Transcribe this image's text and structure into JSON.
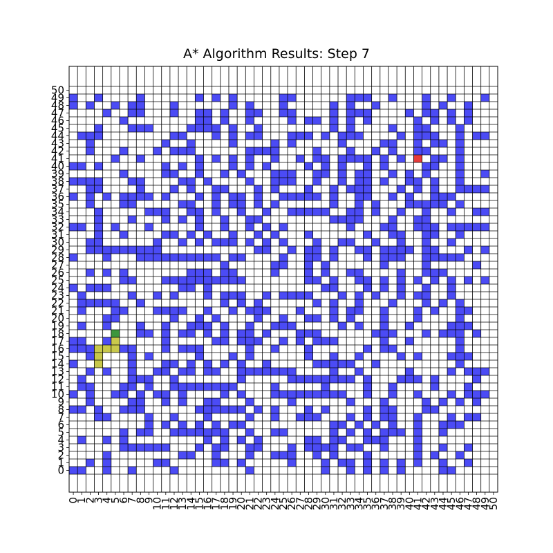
{
  "chart_data": {
    "type": "heatmap",
    "title": "A* Algorithm Results: Step 7",
    "xlabel": "",
    "ylabel": "",
    "xlim": [
      0,
      50
    ],
    "ylim": [
      0,
      50
    ],
    "x_ticks": [
      0,
      1,
      2,
      3,
      4,
      5,
      6,
      7,
      8,
      9,
      10,
      11,
      12,
      13,
      14,
      15,
      16,
      17,
      18,
      19,
      20,
      21,
      22,
      23,
      24,
      25,
      26,
      27,
      28,
      29,
      30,
      31,
      32,
      33,
      34,
      35,
      36,
      37,
      38,
      39,
      40,
      41,
      42,
      43,
      44,
      45,
      46,
      47,
      48,
      49,
      50
    ],
    "y_ticks": [
      0,
      1,
      2,
      3,
      4,
      5,
      6,
      7,
      8,
      9,
      10,
      11,
      12,
      13,
      14,
      15,
      16,
      17,
      18,
      19,
      20,
      21,
      22,
      23,
      24,
      25,
      26,
      27,
      28,
      29,
      30,
      31,
      32,
      33,
      34,
      35,
      36,
      37,
      38,
      39,
      40,
      41,
      42,
      43,
      44,
      45,
      46,
      47,
      48,
      49,
      50
    ],
    "grid": true,
    "colors": {
      "obstacle": "#4b4bf5",
      "explored": "#c8c84b",
      "start": "#3c963c",
      "goal": "#e63c3c",
      "empty": "#ffffff",
      "gridline": "#000000"
    },
    "start": [
      5,
      18
    ],
    "goal": [
      41,
      41
    ],
    "explored": [
      [
        3,
        14
      ],
      [
        3,
        15
      ],
      [
        3,
        16
      ],
      [
        4,
        16
      ],
      [
        5,
        16
      ],
      [
        5,
        17
      ]
    ],
    "obstacles": {
      "49": [
        0,
        3,
        8,
        15,
        17,
        19,
        25,
        26,
        33,
        34,
        35,
        38,
        42,
        45,
        49
      ],
      "48": [
        0,
        2,
        5,
        7,
        8,
        12,
        19,
        21,
        25,
        31,
        33,
        36,
        42,
        44,
        47
      ],
      "47": [
        4,
        7,
        8,
        12,
        15,
        16,
        18,
        21,
        22,
        25,
        26,
        31,
        33,
        34,
        35,
        40,
        42,
        43,
        45,
        47
      ],
      "46": [
        6,
        15,
        16,
        18,
        21,
        26,
        28,
        29,
        31,
        33,
        35,
        41,
        43,
        45,
        47
      ],
      "45": [
        3,
        7,
        8,
        9,
        14,
        15,
        16,
        17,
        19,
        22,
        31,
        33,
        38,
        41,
        42,
        46
      ],
      "44": [
        1,
        2,
        3,
        12,
        13,
        17,
        19,
        21,
        22,
        26,
        27,
        28,
        30,
        32,
        33,
        34,
        39,
        41,
        42,
        43,
        46,
        48,
        49
      ],
      "43": [
        2,
        11,
        14,
        19,
        24,
        26,
        32,
        37,
        38,
        41,
        43,
        44,
        46
      ],
      "42": [
        2,
        6,
        10,
        12,
        13,
        14,
        21,
        22,
        23,
        24,
        29,
        33,
        36,
        38,
        41,
        42,
        46
      ],
      "41": [
        5,
        8,
        15,
        17,
        19,
        21,
        24,
        27,
        29,
        30,
        32,
        33,
        34,
        35,
        37,
        39,
        43,
        44,
        46
      ],
      "40": [
        0,
        1,
        3,
        11,
        13,
        15,
        19,
        21,
        23,
        28,
        30,
        32,
        35,
        37,
        42,
        43,
        46
      ],
      "39": [
        6,
        11,
        12,
        15,
        18,
        20,
        24,
        25,
        26,
        29,
        30,
        32,
        34,
        35,
        38,
        40,
        42,
        46,
        49
      ],
      "38": [
        0,
        1,
        2,
        3,
        7,
        8,
        13,
        14,
        16,
        21,
        24,
        25,
        26,
        29,
        32,
        34,
        35,
        37,
        40,
        41,
        43,
        46
      ],
      "37": [
        2,
        3,
        8,
        12,
        14,
        17,
        18,
        22,
        24,
        28,
        31,
        33,
        34,
        35,
        39,
        41,
        43,
        46,
        47,
        48,
        49
      ],
      "36": [
        0,
        2,
        4,
        6,
        7,
        8,
        9,
        11,
        15,
        17,
        19,
        20,
        22,
        25,
        26,
        27,
        28,
        29,
        31,
        34,
        35,
        38,
        40,
        43,
        44,
        45
      ],
      "35": [
        2,
        6,
        7,
        13,
        14,
        17,
        19,
        20,
        22,
        24,
        31,
        34,
        36,
        40,
        41,
        42,
        43,
        44,
        46
      ],
      "34": [
        3,
        9,
        10,
        11,
        14,
        15,
        17,
        20,
        23,
        26,
        27,
        28,
        29,
        30,
        33,
        34,
        36,
        39,
        42,
        45,
        48,
        49
      ],
      "33": [
        3,
        7,
        11,
        13,
        15,
        18,
        21,
        22,
        31,
        32,
        33,
        34,
        38,
        41,
        42
      ],
      "32": [
        0,
        1,
        3,
        5,
        9,
        15,
        18,
        21,
        23,
        25,
        33,
        37,
        38,
        41,
        42,
        43,
        45,
        46,
        47,
        48,
        49
      ],
      "31": [
        3,
        6,
        11,
        12,
        14,
        16,
        19,
        22,
        24,
        28,
        35,
        38,
        39,
        42,
        43,
        46
      ],
      "30": [
        2,
        3,
        10,
        13,
        15,
        17,
        18,
        19,
        21,
        23,
        25,
        29,
        32,
        33,
        36,
        39,
        42,
        45
      ],
      "29": [
        2,
        3,
        4,
        5,
        6,
        7,
        8,
        9,
        10,
        22,
        23,
        26,
        28,
        29,
        31,
        34,
        35,
        37,
        38,
        39,
        40,
        42,
        43,
        47,
        49
      ],
      "28": [
        0,
        4,
        8,
        9,
        10,
        11,
        12,
        13,
        14,
        15,
        16,
        17,
        19,
        20,
        25,
        28,
        29,
        31,
        35,
        37,
        38,
        39,
        42,
        43,
        44,
        45,
        46
      ],
      "27": [
        18,
        24,
        25,
        28,
        30,
        37,
        42,
        48
      ],
      "26": [
        2,
        4,
        6,
        14,
        15,
        16,
        18,
        19,
        24,
        28,
        30,
        33,
        34,
        39,
        42,
        43,
        44
      ],
      "25": [
        6,
        7,
        11,
        12,
        13,
        14,
        15,
        16,
        17,
        18,
        19,
        20,
        28,
        29,
        31,
        34,
        35,
        37,
        39,
        41,
        43,
        45,
        47,
        49
      ],
      "24": [
        0,
        2,
        3,
        4,
        13,
        14,
        16,
        30,
        31,
        35,
        37,
        39,
        42,
        45
      ],
      "23": [
        1,
        7,
        10,
        12,
        16,
        18,
        19,
        20,
        23,
        25,
        26,
        27,
        28,
        32,
        34,
        36,
        39,
        41,
        42,
        45
      ],
      "22": [
        1,
        2,
        3,
        4,
        5,
        8,
        18,
        20,
        22,
        29,
        31,
        34,
        38,
        42,
        44,
        46
      ],
      "21": [
        1,
        5,
        6,
        10,
        11,
        12,
        13,
        16,
        19,
        21,
        22,
        23,
        27,
        31,
        33,
        34,
        37,
        41,
        43,
        46,
        47
      ],
      "20": [
        4,
        5,
        12,
        15,
        17,
        22,
        25,
        28,
        29,
        31,
        33,
        37,
        41,
        46
      ],
      "19": [
        1,
        4,
        8,
        11,
        14,
        15,
        16,
        18,
        21,
        24,
        25,
        26,
        32,
        34,
        37,
        40,
        45,
        46,
        47
      ],
      "18": [
        8,
        9,
        11,
        13,
        14,
        16,
        18,
        20,
        21,
        23,
        27,
        28,
        29,
        36,
        37,
        38,
        42,
        44,
        45,
        46,
        48
      ],
      "17": [
        0,
        1,
        4,
        11,
        17,
        18,
        20,
        21,
        22,
        25,
        27,
        29,
        30,
        31,
        37,
        40,
        46
      ],
      "16": [
        0,
        1,
        2,
        6,
        7,
        11,
        13,
        14,
        15,
        21,
        24,
        28,
        35,
        37,
        38,
        46
      ],
      "15": [
        2,
        7,
        9,
        15,
        19,
        21,
        28,
        31,
        34,
        39,
        41,
        45,
        46,
        47
      ],
      "14": [
        0,
        7,
        11,
        12,
        14,
        16,
        18,
        20,
        23,
        29,
        30,
        31,
        32,
        33,
        36,
        46
      ],
      "13": [
        2,
        4,
        7,
        10,
        11,
        13,
        14,
        16,
        17,
        20,
        21,
        22,
        23,
        24,
        25,
        26,
        31,
        34,
        40,
        45,
        47,
        48,
        49
      ],
      "12": [
        1,
        7,
        8,
        9,
        12,
        20,
        26,
        27,
        28,
        29,
        30,
        31,
        32,
        33,
        35,
        39,
        40,
        41,
        43,
        48
      ],
      "11": [
        1,
        2,
        6,
        7,
        9,
        12,
        13,
        14,
        15,
        16,
        17,
        18,
        19,
        24,
        30,
        35,
        38,
        43,
        47
      ],
      "10": [
        0,
        2,
        5,
        6,
        8,
        10,
        11,
        13,
        18,
        20,
        24,
        25,
        26,
        27,
        28,
        29,
        30,
        31,
        32,
        35,
        38,
        41,
        45,
        47,
        48,
        49
      ],
      "9": [
        2,
        7,
        8,
        11,
        13,
        16,
        17,
        21,
        26,
        33,
        37,
        42,
        44,
        46,
        48
      ],
      "8": [
        0,
        1,
        3,
        6,
        7,
        8,
        15,
        16,
        17,
        18,
        19,
        20,
        22,
        24,
        28,
        30,
        35,
        37,
        38,
        42,
        43
      ],
      "7": [
        3,
        4,
        9,
        12,
        16,
        21,
        24,
        27,
        28,
        29,
        33,
        35,
        37,
        38,
        41,
        45,
        47,
        48
      ],
      "6": [
        9,
        11,
        13,
        15,
        17,
        19,
        20,
        31,
        32,
        34,
        36,
        38,
        41,
        44,
        45,
        46
      ],
      "5": [
        6,
        8,
        9,
        12,
        13,
        14,
        15,
        16,
        17,
        18,
        21,
        24,
        25,
        31,
        33,
        35,
        37,
        38,
        39,
        41,
        44
      ],
      "4": [
        1,
        4,
        6,
        16,
        18,
        20,
        22,
        28,
        29,
        31,
        32,
        35,
        36,
        37,
        41
      ],
      "3": [
        6,
        7,
        8,
        9,
        10,
        11,
        15,
        17,
        18,
        21,
        22,
        26,
        28,
        29,
        30,
        31,
        33,
        34,
        37,
        41,
        44,
        47
      ],
      "2": [
        4,
        13,
        14,
        17,
        21,
        24,
        25,
        26,
        29,
        31,
        35,
        41,
        43,
        46
      ],
      "1": [
        2,
        4,
        10,
        11,
        17,
        18,
        20,
        26,
        30,
        32,
        33,
        35,
        37,
        39,
        41,
        44,
        47
      ],
      "0": [
        0,
        1,
        4,
        7,
        12,
        21,
        30,
        33,
        35,
        37,
        39,
        44,
        45
      ]
    }
  }
}
